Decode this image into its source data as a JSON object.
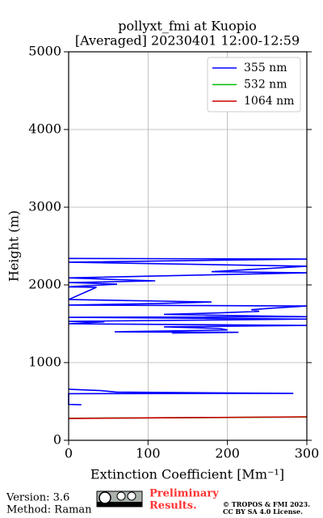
{
  "chart_data": {
    "type": "profile",
    "title": "pollyxt_fmi at Kuopio",
    "subtitle": "[Averaged] 20230401 12:00-12:59",
    "xlabel": "Extinction Coefficient [Mm⁻¹]",
    "ylabel": "Height (m)",
    "xlim": [
      0,
      300
    ],
    "xticks": [
      0,
      100,
      200,
      300
    ],
    "ylim": [
      0,
      5000
    ],
    "yticks": [
      0,
      1000,
      2000,
      3000,
      4000,
      5000
    ],
    "grid": true,
    "legend": "upper right",
    "series": [
      {
        "name": "355 nm",
        "color": "#0000ff",
        "x": [
          16,
          0,
          0,
          283,
          60,
          40,
          3,
          0,
          null,
          130,
          214,
          58,
          200,
          190,
          120,
          300,
          0,
          45,
          0,
          300,
          0,
          300,
          120,
          190,
          240,
          230,
          255,
          300,
          0,
          110,
          180,
          0,
          35,
          0,
          61,
          0,
          109,
          0,
          300,
          180,
          300,
          0,
          300,
          0
        ],
        "values": [
          458,
          462,
          600,
          604,
          620,
          640,
          656,
          660,
          null,
          1380,
          1390,
          1396,
          1420,
          1440,
          1460,
          1479,
          1500,
          1525,
          1531,
          1560,
          1583,
          1590,
          1620,
          1640,
          1660,
          1680,
          1700,
          1729,
          1740,
          1760,
          1780,
          1812,
          1969,
          1975,
          2010,
          2030,
          2052,
          2090,
          2156,
          2170,
          2240,
          2292,
          2333,
          2340
        ]
      },
      {
        "name": "532 nm",
        "color": "#00bb00",
        "x": [
          0,
          300
        ],
        "values": [
          283,
          300
        ]
      },
      {
        "name": "1064 nm",
        "color": "#cc0000",
        "x": [
          0,
          300
        ],
        "values": [
          281,
          302
        ]
      }
    ]
  },
  "footer": {
    "version": "Version: 3.6",
    "method": "Method: Raman",
    "preliminary": [
      "Preliminary",
      "Results."
    ],
    "license": [
      "© TROPOS & FMI 2023.",
      "CC BY SA 4.0 License."
    ]
  }
}
